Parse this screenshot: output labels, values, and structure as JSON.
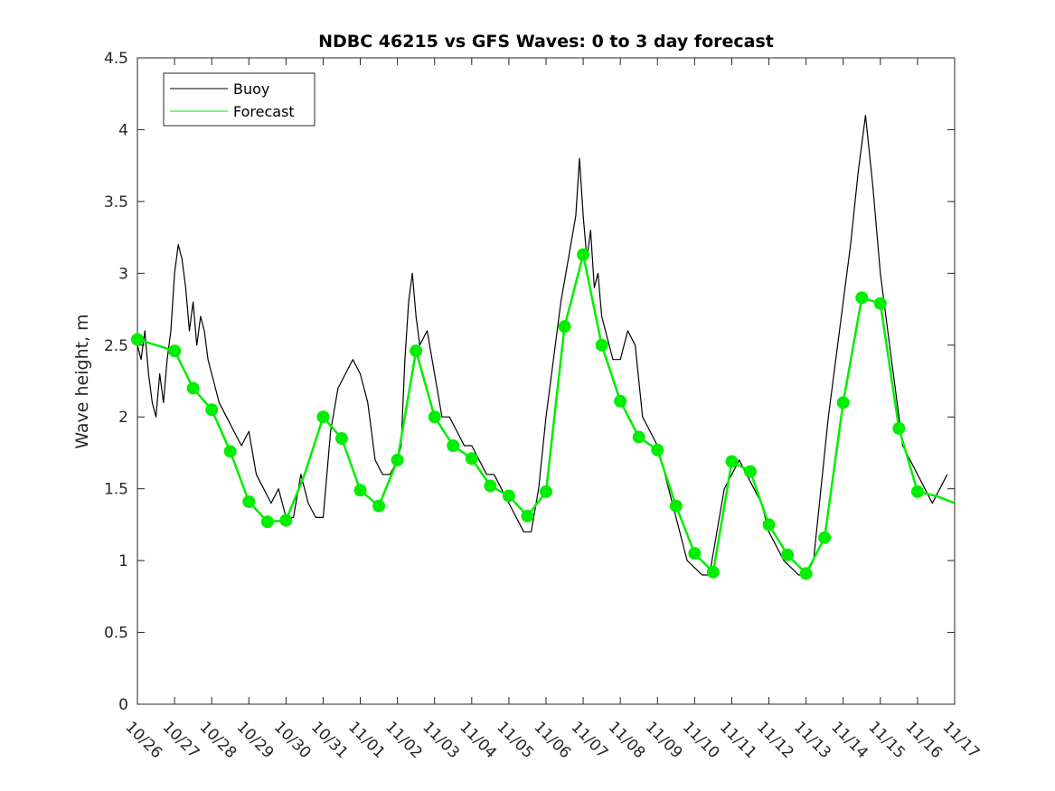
{
  "chart_data": {
    "type": "line",
    "title": "NDBC 46215 vs GFS Waves: 0 to 3 day forecast",
    "xlabel": "",
    "ylabel": "Wave height, m",
    "xlim": [
      0,
      22
    ],
    "ylim": [
      0,
      4.5
    ],
    "yticks": [
      0,
      0.5,
      1,
      1.5,
      2,
      2.5,
      3,
      3.5,
      4,
      4.5
    ],
    "ytick_labels": [
      "0",
      "0.5",
      "1",
      "1.5",
      "2",
      "2.5",
      "3",
      "3.5",
      "4",
      "4.5"
    ],
    "xtick_labels": [
      "10/26",
      "10/27",
      "10/28",
      "10/29",
      "10/30",
      "10/31",
      "11/01",
      "11/02",
      "11/03",
      "11/04",
      "11/05",
      "11/06",
      "11/07",
      "11/08",
      "11/09",
      "11/10",
      "11/11",
      "11/12",
      "11/13",
      "11/14",
      "11/15",
      "11/16",
      "11/17"
    ],
    "legend": {
      "position": "top-left",
      "entries": [
        "Buoy",
        "Forecast"
      ]
    },
    "colors": {
      "buoy": "#000000",
      "forecast": "#00ee00",
      "marker": "#00ee00",
      "axis": "#262626"
    },
    "series": [
      {
        "name": "Buoy",
        "x": [
          0,
          0.1,
          0.2,
          0.3,
          0.4,
          0.5,
          0.6,
          0.7,
          0.8,
          0.9,
          1.0,
          1.1,
          1.2,
          1.3,
          1.4,
          1.5,
          1.6,
          1.7,
          1.8,
          1.9,
          2.0,
          2.1,
          2.2,
          2.4,
          2.6,
          2.8,
          3.0,
          3.2,
          3.4,
          3.6,
          3.8,
          4.0,
          4.2,
          4.4,
          4.6,
          4.8,
          5.0,
          5.2,
          5.4,
          5.6,
          5.8,
          6.0,
          6.2,
          6.4,
          6.6,
          6.8,
          7.0,
          7.1,
          7.2,
          7.3,
          7.4,
          7.5,
          7.6,
          7.8,
          8.0,
          8.2,
          8.4,
          8.6,
          8.8,
          9.0,
          9.2,
          9.4,
          9.6,
          9.8,
          10.0,
          10.2,
          10.4,
          10.6,
          10.8,
          11.0,
          11.2,
          11.4,
          11.6,
          11.8,
          11.9,
          12.0,
          12.1,
          12.2,
          12.3,
          12.4,
          12.5,
          12.6,
          12.8,
          13.0,
          13.2,
          13.4,
          13.6,
          13.8,
          14.0,
          14.2,
          14.4,
          14.6,
          14.8,
          15.0,
          15.2,
          15.4,
          15.6,
          15.8,
          16.0,
          16.2,
          16.4,
          16.6,
          16.8,
          17.0,
          17.2,
          17.4,
          17.6,
          17.8,
          18.0,
          18.2,
          18.4,
          18.6,
          18.8,
          19.0,
          19.2,
          19.4,
          19.6,
          19.8,
          20.0,
          20.1,
          20.2,
          20.3,
          20.4,
          20.5,
          20.6,
          20.8,
          21.0,
          21.2,
          21.4,
          21.6,
          21.8
        ],
        "y": [
          2.5,
          2.4,
          2.6,
          2.3,
          2.1,
          2.0,
          2.3,
          2.1,
          2.4,
          2.6,
          3.0,
          3.2,
          3.1,
          2.9,
          2.6,
          2.8,
          2.5,
          2.7,
          2.6,
          2.4,
          2.3,
          2.2,
          2.1,
          2.0,
          1.9,
          1.8,
          1.9,
          1.6,
          1.5,
          1.4,
          1.5,
          1.3,
          1.3,
          1.6,
          1.4,
          1.3,
          1.3,
          1.9,
          2.2,
          2.3,
          2.4,
          2.3,
          2.1,
          1.7,
          1.6,
          1.6,
          1.7,
          1.8,
          2.4,
          2.8,
          3.0,
          2.7,
          2.5,
          2.6,
          2.3,
          2.0,
          2.0,
          1.9,
          1.8,
          1.8,
          1.7,
          1.6,
          1.6,
          1.5,
          1.4,
          1.3,
          1.2,
          1.2,
          1.5,
          2.0,
          2.4,
          2.8,
          3.1,
          3.4,
          3.8,
          3.4,
          3.1,
          3.3,
          2.9,
          3.0,
          2.7,
          2.6,
          2.4,
          2.4,
          2.6,
          2.5,
          2.0,
          1.9,
          1.8,
          1.6,
          1.4,
          1.2,
          1.0,
          0.95,
          0.9,
          0.9,
          1.2,
          1.5,
          1.6,
          1.7,
          1.6,
          1.5,
          1.4,
          1.2,
          1.1,
          1.0,
          0.95,
          0.9,
          0.9,
          1.0,
          1.5,
          2.0,
          2.4,
          2.8,
          3.2,
          3.7,
          4.1,
          3.6,
          3.0,
          2.8,
          2.6,
          2.4,
          2.2,
          2.0,
          1.8,
          1.7,
          1.6,
          1.5,
          1.4,
          1.5,
          1.6
        ],
        "color": "#000000"
      },
      {
        "name": "Forecast",
        "x": [
          0,
          0.5,
          1.0,
          1.5,
          2.0,
          2.5,
          3.0,
          3.5,
          4.0,
          4.5,
          5.0,
          5.5,
          6.0,
          6.5,
          7.0,
          7.5,
          8.0,
          8.5,
          9.0,
          9.5,
          10.0,
          10.5,
          11.0,
          11.5,
          12.0,
          12.5,
          13.0,
          13.5,
          14.0,
          14.5,
          15.0,
          15.5,
          16.0,
          16.5,
          17.0,
          17.5,
          18.0,
          18.5,
          19.0,
          19.5,
          20.0,
          20.5,
          21.0,
          21.5,
          22.0
        ],
        "y": [
          2.54,
          2.5,
          2.46,
          2.2,
          2.05,
          1.76,
          1.41,
          1.27,
          1.28,
          1.6,
          2.0,
          1.85,
          1.49,
          1.38,
          1.7,
          2.46,
          2.0,
          1.8,
          1.71,
          1.52,
          1.45,
          1.31,
          1.48,
          2.63,
          3.13,
          2.5,
          2.11,
          1.86,
          1.77,
          1.38,
          1.05,
          0.92,
          1.69,
          1.62,
          1.25,
          1.04,
          0.91,
          1.16,
          2.1,
          2.83,
          2.79,
          1.92,
          1.48,
          1.45,
          1.4
        ],
        "color": "#00ee00"
      }
    ],
    "markers": {
      "name": "Forecast",
      "x": [
        0,
        1,
        1.5,
        2,
        2.5,
        3,
        3.5,
        4,
        5,
        5.5,
        6,
        6.5,
        7,
        7.5,
        8,
        8.5,
        9,
        9.5,
        10,
        10.5,
        11,
        11.5,
        12,
        12.5,
        13,
        13.5,
        14,
        14.5,
        15,
        15.5,
        16,
        16.5,
        17,
        17.5,
        18,
        18.5,
        19,
        19.5,
        20,
        20.5,
        21
      ],
      "y": [
        2.54,
        2.46,
        2.2,
        2.05,
        1.76,
        1.41,
        1.27,
        1.28,
        2.0,
        1.85,
        1.49,
        1.38,
        1.7,
        2.46,
        2.0,
        1.8,
        1.71,
        1.52,
        1.45,
        1.31,
        1.48,
        2.63,
        3.13,
        2.5,
        2.11,
        1.86,
        1.77,
        1.38,
        1.05,
        0.92,
        1.69,
        1.62,
        1.25,
        1.04,
        0.91,
        1.16,
        2.1,
        2.83,
        2.79,
        1.92,
        1.48
      ]
    }
  }
}
